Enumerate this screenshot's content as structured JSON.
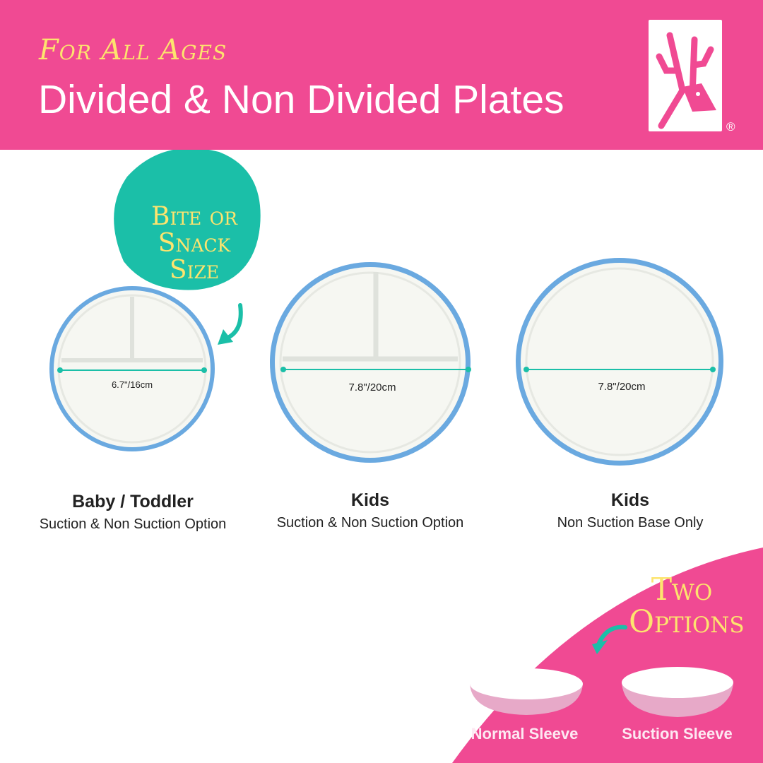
{
  "header": {
    "kicker": "For All Ages",
    "title": "Divided & Non Divided Plates",
    "registered": "®"
  },
  "colors": {
    "brand_pink": "#f04a93",
    "accent_yellow": "#fde46e",
    "teal": "#1bbfa8",
    "plate_rim": "#6aa9e0"
  },
  "badge": {
    "line1": "Bite or",
    "line2": "Snack Size"
  },
  "plates": [
    {
      "type": "divided",
      "dimension": "6.7\"/16cm",
      "title": "Baby / Toddler",
      "subtitle": "Suction & Non Suction Option"
    },
    {
      "type": "divided",
      "dimension": "7.8\"/20cm",
      "title": "Kids",
      "subtitle": "Suction & Non Suction Option"
    },
    {
      "type": "non-divided",
      "dimension": "7.8\"/20cm",
      "title": "Kids",
      "subtitle": "Non Suction Base Only"
    }
  ],
  "options": {
    "line1": "Two",
    "line2": "Options",
    "sleeves": [
      "Normal Sleeve",
      "Suction Sleeve"
    ]
  }
}
